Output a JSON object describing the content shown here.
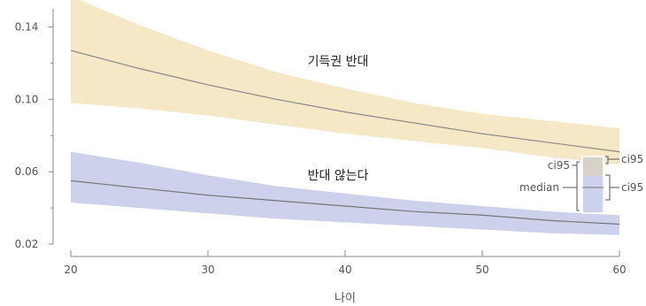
{
  "chart_data": {
    "type": "line",
    "xlabel": "나이",
    "ylabel": "",
    "xlim": [
      20,
      60
    ],
    "ylim": [
      0.02,
      0.15
    ],
    "x_ticks": [
      20,
      30,
      40,
      50,
      60
    ],
    "y_ticks": [
      0.02,
      0.06,
      0.1,
      0.14
    ],
    "y_tick_labels": [
      "0.02",
      "0.06",
      "0.10",
      "0.14"
    ],
    "x": [
      20,
      25,
      30,
      35,
      40,
      45,
      50,
      55,
      60
    ],
    "series": [
      {
        "name": "기득권 반대",
        "color": "#888888",
        "band_color": "#f5e8c7",
        "median": [
          0.127,
          0.117,
          0.108,
          0.1,
          0.093,
          0.087,
          0.081,
          0.076,
          0.071
        ],
        "ci_low": [
          0.098,
          0.095,
          0.091,
          0.086,
          0.081,
          0.077,
          0.073,
          0.068,
          0.064
        ],
        "ci_high": [
          0.157,
          0.141,
          0.127,
          0.115,
          0.106,
          0.098,
          0.092,
          0.088,
          0.084
        ]
      },
      {
        "name": "반대 않는다",
        "color": "#777777",
        "band_color": "#cdd1ec",
        "median": [
          0.055,
          0.051,
          0.047,
          0.044,
          0.041,
          0.038,
          0.036,
          0.033,
          0.031
        ],
        "ci_low": [
          0.043,
          0.04,
          0.037,
          0.034,
          0.032,
          0.03,
          0.028,
          0.026,
          0.025
        ],
        "ci_high": [
          0.071,
          0.065,
          0.058,
          0.052,
          0.048,
          0.044,
          0.041,
          0.038,
          0.036
        ]
      }
    ],
    "legend": {
      "placement": "right",
      "median_label": "median",
      "ci_labels": [
        "ci95",
        "ci95",
        "ci95"
      ]
    }
  }
}
